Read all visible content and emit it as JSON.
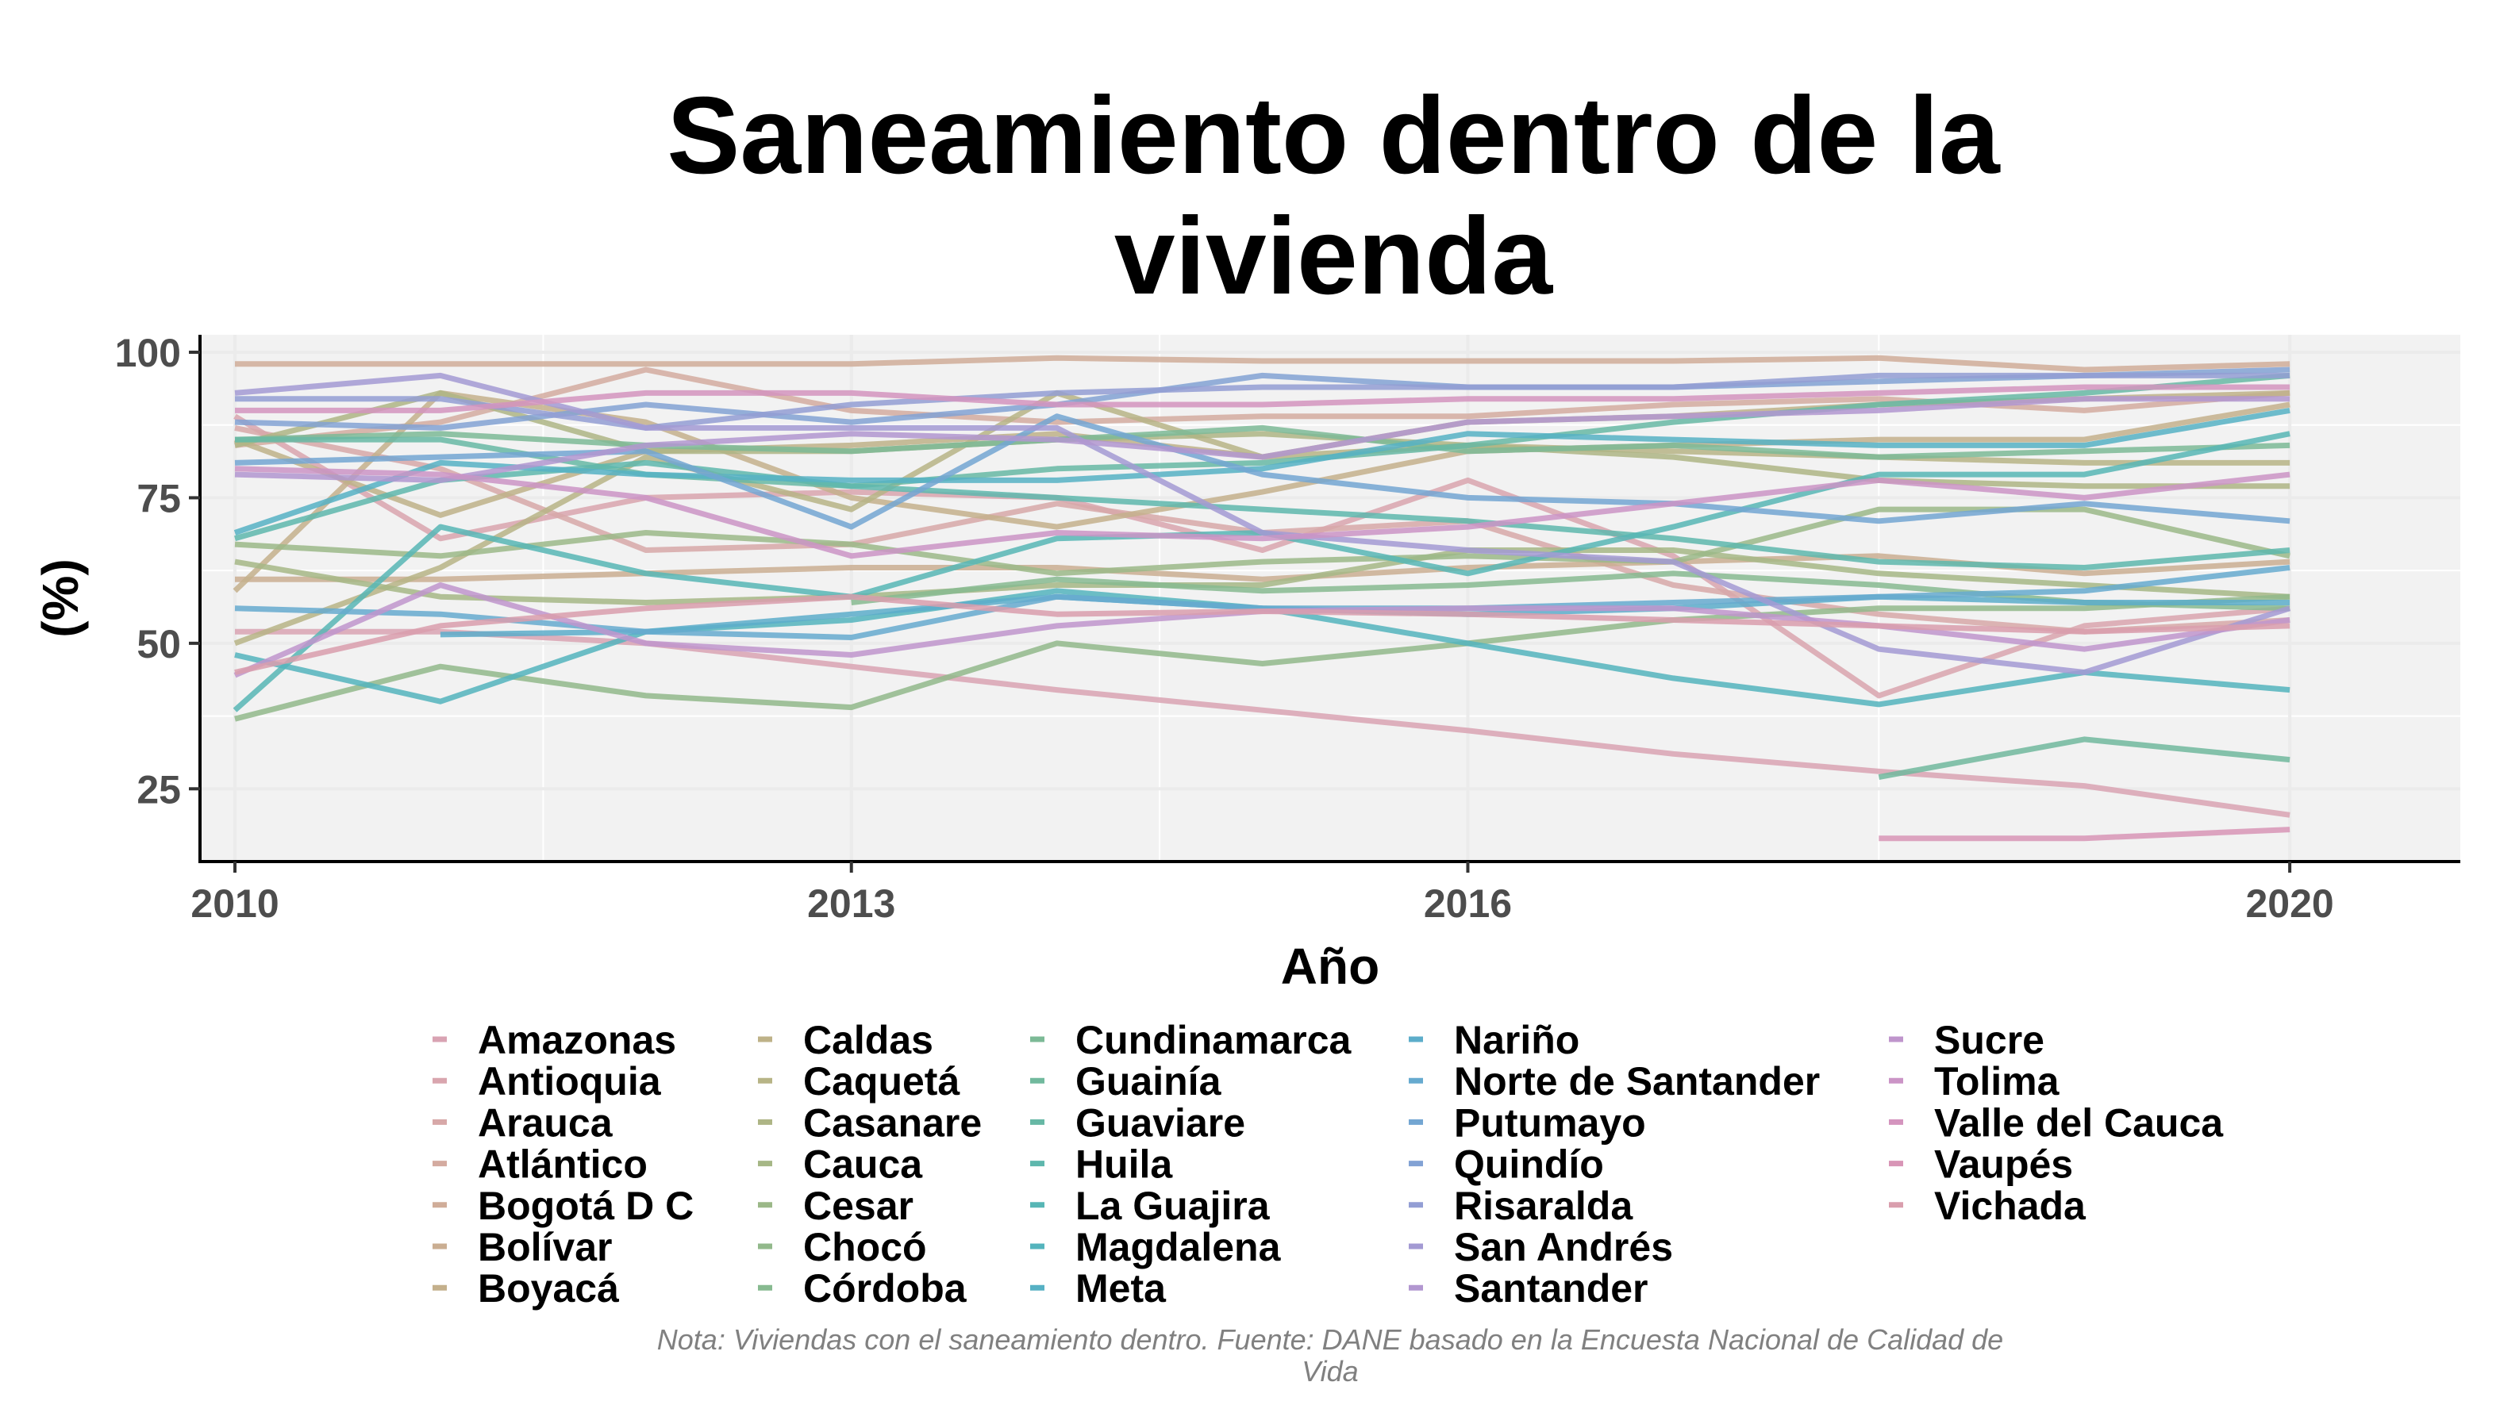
{
  "chart_data": {
    "type": "line",
    "title": [
      "Saneamiento dentro de la",
      "vivienda"
    ],
    "xlabel": "Año",
    "ylabel": "(%)",
    "xlim": [
      2009.83,
      2020.83
    ],
    "ylim": [
      12.5,
      103
    ],
    "xticks": [
      2010,
      2013,
      2016,
      2020
    ],
    "xtick_labels": [
      "2010",
      "2013",
      "2016",
      "2020"
    ],
    "yticks": [
      25,
      50,
      75,
      100
    ],
    "ytick_labels": [
      "25",
      "50",
      "75",
      "100"
    ],
    "grid": true,
    "legend_position": "bottom",
    "legend_columns": 5,
    "caption": [
      "Nota: Viviendas con el saneamiento dentro. Fuente: DANE basado en la Encuesta Nacional de Calidad de",
      "Vida"
    ],
    "x": [
      2010,
      2011,
      2012,
      2013,
      2014,
      2015,
      2016,
      2017,
      2018,
      2019,
      2020
    ],
    "series": [
      {
        "name": "Amazonas",
        "color": "#d9a3b3",
        "values": [
          52,
          52,
          50,
          46,
          42,
          38.5,
          35,
          31,
          28,
          25.5,
          20.5
        ]
      },
      {
        "name": "Antioquia",
        "color": "#d9a5ae",
        "values": [
          89,
          68,
          75,
          76,
          75,
          66,
          78,
          65,
          41,
          53,
          56
        ]
      },
      {
        "name": "Arauca",
        "color": "#d7a8a8",
        "values": [
          87,
          80,
          66,
          67,
          74,
          69,
          71,
          60,
          55,
          52,
          54
        ]
      },
      {
        "name": "Atlántico",
        "color": "#d4aba0",
        "values": [
          84,
          88,
          97,
          90,
          88,
          89,
          89,
          91,
          92,
          90,
          93
        ]
      },
      {
        "name": "Bogotá D C",
        "color": "#d0ad99",
        "values": [
          98,
          98,
          98,
          98,
          99,
          98.5,
          98.5,
          98.5,
          99,
          97,
          98
        ]
      },
      {
        "name": "Bolívar",
        "color": "#caae92",
        "values": [
          61,
          61,
          62,
          63,
          63,
          61,
          63,
          64,
          65,
          62,
          64
        ]
      },
      {
        "name": "Boyacá",
        "color": "#c4b08c",
        "values": [
          59,
          93,
          88,
          75,
          70,
          76,
          83,
          84,
          85,
          85,
          91
        ]
      },
      {
        "name": "Caldas",
        "color": "#beb288",
        "values": [
          85,
          72,
          83,
          84,
          86,
          82,
          88,
          89,
          91,
          92,
          93
        ]
      },
      {
        "name": "Caquetá",
        "color": "#b7b486",
        "values": [
          50,
          63,
          82,
          73,
          93,
          82,
          84,
          83,
          82,
          81,
          81
        ]
      },
      {
        "name": "Casanare",
        "color": "#aeb585",
        "values": [
          84,
          93,
          83,
          83,
          85,
          86,
          84,
          82,
          78,
          77,
          77
        ]
      },
      {
        "name": "Cauca",
        "color": "#a6b786",
        "values": [
          64,
          58,
          57,
          58,
          60,
          60,
          66,
          66,
          62,
          60,
          58
        ]
      },
      {
        "name": "Cesar",
        "color": "#9bb888",
        "values": [
          67,
          65,
          69,
          67,
          62,
          64,
          65,
          64,
          73,
          73,
          65
        ]
      },
      {
        "name": "Chocó",
        "color": "#92b98b",
        "values": [
          37,
          46,
          41,
          39,
          50,
          46.5,
          50,
          54,
          56,
          56,
          58
        ]
      },
      {
        "name": "Córdoba",
        "color": "#87ba90",
        "values": [
          null,
          null,
          null,
          57,
          61,
          59,
          60,
          62,
          60,
          57,
          56
        ]
      },
      {
        "name": "Cundinamarca",
        "color": "#7cba96",
        "values": [
          85,
          86,
          84,
          83,
          85,
          87,
          83,
          84,
          82,
          83,
          84
        ]
      },
      {
        "name": "Guainía",
        "color": "#71b99d",
        "values": [
          null,
          null,
          null,
          null,
          null,
          null,
          null,
          null,
          27,
          33.5,
          30
        ]
      },
      {
        "name": "Guaviare",
        "color": "#67b8a5",
        "values": [
          85,
          85,
          79,
          77,
          80,
          81,
          84,
          88,
          91,
          93,
          96
        ]
      },
      {
        "name": "Huila",
        "color": "#5eb7ad",
        "values": [
          68,
          78,
          81,
          77,
          75,
          73,
          71,
          68,
          64,
          63,
          66
        ]
      },
      {
        "name": "La Guajira",
        "color": "#57b6b5",
        "values": [
          38.5,
          70,
          62,
          58,
          68,
          69,
          62,
          70,
          79,
          79,
          86
        ]
      },
      {
        "name": "Magdalena",
        "color": "#54b4bd",
        "values": [
          48,
          40,
          52,
          54,
          59,
          56,
          50,
          44,
          39.5,
          45,
          42
        ]
      },
      {
        "name": "Meta",
        "color": "#56b1c4",
        "values": [
          69,
          81,
          79,
          78,
          78,
          80,
          86,
          85,
          84,
          84,
          90
        ]
      },
      {
        "name": "Nariño",
        "color": "#5cadca",
        "values": [
          null,
          51.5,
          52,
          55,
          58,
          56,
          55,
          56,
          58,
          57,
          57
        ]
      },
      {
        "name": "Norte de Santander",
        "color": "#66aacf",
        "values": [
          56,
          55,
          52,
          51,
          58,
          56,
          56,
          57,
          58,
          59,
          63
        ]
      },
      {
        "name": "Putumayo",
        "color": "#73a6d2",
        "values": [
          81,
          82,
          83,
          70,
          89,
          79,
          75,
          74,
          71,
          74,
          71
        ]
      },
      {
        "name": "Quindío",
        "color": "#82a2d4",
        "values": [
          88,
          87,
          91,
          88,
          91,
          96,
          94,
          94,
          95,
          96,
          97
        ]
      },
      {
        "name": "Risaralda",
        "color": "#939ed4",
        "values": [
          92,
          92,
          87,
          91,
          93,
          94,
          94,
          94,
          96,
          96,
          96
        ]
      },
      {
        "name": "San Andrés",
        "color": "#a39ad3",
        "values": [
          93,
          96,
          87,
          87,
          87,
          69,
          66,
          64,
          49,
          45,
          56
        ]
      },
      {
        "name": "Santander",
        "color": "#b297d0",
        "values": [
          79,
          78,
          84,
          86,
          85,
          82,
          88,
          89,
          90,
          92,
          92
        ]
      },
      {
        "name": "Sucre",
        "color": "#bf95cc",
        "values": [
          44.5,
          60,
          50,
          48,
          53,
          55.5,
          56,
          56,
          53,
          49,
          54
        ]
      },
      {
        "name": "Tolima",
        "color": "#cb94c6",
        "values": [
          80,
          79,
          75,
          65,
          69,
          68,
          70,
          74,
          78,
          75,
          79
        ]
      },
      {
        "name": "Valle del Cauca",
        "color": "#d494be",
        "values": [
          90,
          90,
          93,
          93,
          91,
          91,
          92,
          92,
          93,
          94,
          94
        ]
      },
      {
        "name": "Vaupés",
        "color": "#d895b6",
        "values": [
          null,
          null,
          null,
          null,
          null,
          null,
          null,
          null,
          16.5,
          16.5,
          18
        ]
      },
      {
        "name": "Vichada",
        "color": "#d99ead",
        "values": [
          45,
          53,
          56,
          58,
          55,
          55.5,
          55,
          54,
          53,
          52,
          53
        ]
      }
    ]
  }
}
